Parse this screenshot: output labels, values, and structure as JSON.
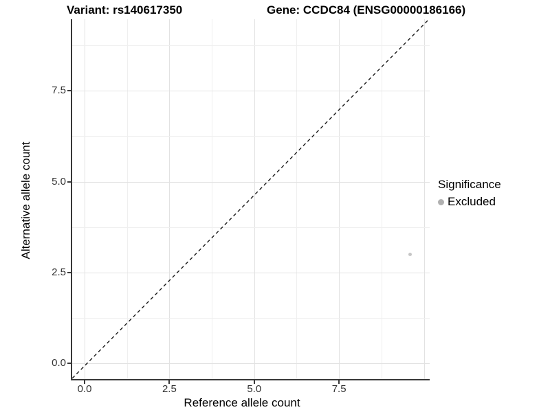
{
  "title": {
    "variant": "Variant: rs140617350",
    "gene": "Gene: CCDC84 (ENSG00000186166)"
  },
  "x_axis": {
    "label": "Reference allele count",
    "tick_labels": [
      "0.0",
      "2.5",
      "5.0",
      "7.5"
    ]
  },
  "y_axis": {
    "label": "Alternative allele count",
    "tick_labels": [
      "0.0",
      "2.5",
      "5.0",
      "7.5"
    ]
  },
  "legend": {
    "title": "Significance",
    "items": [
      {
        "label": "Excluded",
        "marker_color": "#b0b0b0"
      }
    ]
  },
  "chart_data": {
    "type": "scatter",
    "title": "Variant: rs140617350 | Gene: CCDC84 (ENSG00000186166)",
    "xlabel": "Reference allele count",
    "ylabel": "Alternative allele count",
    "xlim": [
      -0.45,
      10.15
    ],
    "ylim": [
      -0.5,
      9.45
    ],
    "x_major_ticks": [
      0,
      2.5,
      5,
      7.5
    ],
    "y_major_ticks": [
      0,
      2.5,
      5,
      7.5
    ],
    "x_minor_gridlines": [
      1.25,
      3.75,
      6.25,
      8.75
    ],
    "y_minor_gridlines": [
      1.25,
      3.75,
      6.25,
      8.75
    ],
    "x_major_gridlines": [
      0,
      2.5,
      5,
      7.5,
      10
    ],
    "y_major_gridlines": [
      0,
      2.5,
      5,
      7.5
    ],
    "grid": true,
    "legend_position": "right-center",
    "series": [
      {
        "name": "Excluded",
        "marker_color": "#c6c6c6",
        "marker_size_px": 5,
        "points": [
          {
            "x": 9.6,
            "y": 3.0
          }
        ]
      }
    ],
    "reference_line": {
      "description": "y = x identity diagonal",
      "style": "dashed",
      "color": "#1a1a1a"
    }
  },
  "colors": {
    "background": "#ffffff",
    "grid_major": "#e2e2e2",
    "grid_minor": "#efefef",
    "axis_line": "#383838",
    "tick_label": "#333333",
    "point": "#c6c6c6",
    "legend_marker": "#b0b0b0"
  }
}
